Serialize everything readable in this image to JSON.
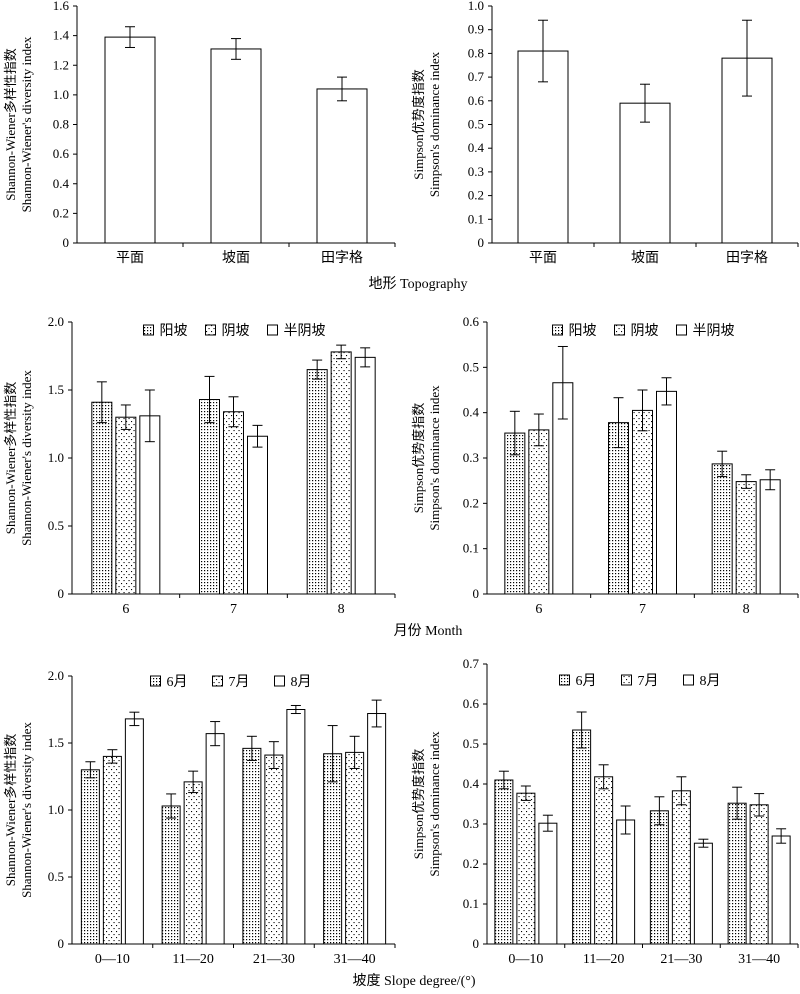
{
  "figure": {
    "row_xlabels": [
      "地形 Topography",
      "月份 Month",
      "坡度 Slope degree/(°)"
    ]
  },
  "chart_data": [
    {
      "id": "a",
      "type": "bar",
      "categories": [
        "平面",
        "坡面",
        "田字格"
      ],
      "series": [
        {
          "values": [
            1.39,
            1.31,
            1.04
          ],
          "errors": [
            0.07,
            0.07,
            0.08
          ],
          "pattern": "plain"
        }
      ],
      "ylim": [
        0,
        1.6
      ],
      "yticks": [
        0,
        0.2,
        0.4,
        0.6,
        0.8,
        1.0,
        1.2,
        1.4,
        1.6
      ],
      "ytick_labels": [
        "0",
        "0.2",
        "0.4",
        "0.6",
        "0.8",
        "1.0",
        "1.2",
        "1.4",
        "1.6"
      ],
      "ylabel": [
        "Shannon-Wiener多样性指数",
        "Shannon-Wiener's diversity index"
      ],
      "legend": null
    },
    {
      "id": "b",
      "type": "bar",
      "categories": [
        "平面",
        "坡面",
        "田字格"
      ],
      "series": [
        {
          "values": [
            0.81,
            0.59,
            0.78
          ],
          "errors": [
            0.13,
            0.08,
            0.16
          ],
          "pattern": "plain"
        }
      ],
      "ylim": [
        0,
        1.0
      ],
      "yticks": [
        0,
        0.1,
        0.2,
        0.3,
        0.4,
        0.5,
        0.6,
        0.7,
        0.8,
        0.9,
        1.0
      ],
      "ytick_labels": [
        "0",
        "0.1",
        "0.2",
        "0.3",
        "0.4",
        "0.5",
        "0.6",
        "0.7",
        "0.8",
        "0.9",
        "1.0"
      ],
      "ylabel": [
        "Simpson优势度指数",
        "Simpson's dominance index"
      ],
      "legend": null
    },
    {
      "id": "c",
      "type": "bar",
      "categories": [
        "6",
        "7",
        "8"
      ],
      "series": [
        {
          "name": "阳坡",
          "values": [
            1.41,
            1.43,
            1.65
          ],
          "errors": [
            0.15,
            0.17,
            0.07
          ],
          "pattern": "dense"
        },
        {
          "name": "阴坡",
          "values": [
            1.3,
            1.34,
            1.78
          ],
          "errors": [
            0.09,
            0.11,
            0.05
          ],
          "pattern": "sparse"
        },
        {
          "name": "半阴坡",
          "values": [
            1.31,
            1.16,
            1.74
          ],
          "errors": [
            0.19,
            0.08,
            0.07
          ],
          "pattern": "plain"
        }
      ],
      "ylim": [
        0,
        2.0
      ],
      "yticks": [
        0,
        0.5,
        1.0,
        1.5,
        2.0
      ],
      "ytick_labels": [
        "0",
        "0.5",
        "1.0",
        "1.5",
        "2.0"
      ],
      "ylabel": [
        "Shannon-Wiener多样性指数",
        "Shannon-Wiener's diversity index"
      ],
      "legend": "top"
    },
    {
      "id": "d",
      "type": "bar",
      "categories": [
        "6",
        "7",
        "8"
      ],
      "series": [
        {
          "name": "阳坡",
          "values": [
            0.355,
            0.378,
            0.287
          ],
          "errors": [
            0.048,
            0.055,
            0.028
          ],
          "pattern": "dense"
        },
        {
          "name": "阴坡",
          "values": [
            0.362,
            0.405,
            0.248
          ],
          "errors": [
            0.035,
            0.045,
            0.015
          ],
          "pattern": "sparse"
        },
        {
          "name": "半阴坡",
          "values": [
            0.466,
            0.447,
            0.252
          ],
          "errors": [
            0.08,
            0.03,
            0.022
          ],
          "pattern": "plain"
        }
      ],
      "ylim": [
        0,
        0.6
      ],
      "yticks": [
        0,
        0.1,
        0.2,
        0.3,
        0.4,
        0.5,
        0.6
      ],
      "ytick_labels": [
        "0",
        "0.1",
        "0.2",
        "0.3",
        "0.4",
        "0.5",
        "0.6"
      ],
      "ylabel": [
        "Simpson优势度指数",
        "Simpson's dominance index"
      ],
      "legend": "top"
    },
    {
      "id": "e",
      "type": "bar",
      "categories": [
        "0—10",
        "11—20",
        "21—30",
        "31—40"
      ],
      "series": [
        {
          "name": "6月",
          "values": [
            1.3,
            1.03,
            1.46,
            1.42
          ],
          "errors": [
            0.06,
            0.09,
            0.09,
            0.21
          ],
          "pattern": "dense"
        },
        {
          "name": "7月",
          "values": [
            1.4,
            1.21,
            1.41,
            1.43
          ],
          "errors": [
            0.05,
            0.08,
            0.1,
            0.12
          ],
          "pattern": "sparse"
        },
        {
          "name": "8月",
          "values": [
            1.68,
            1.57,
            1.75,
            1.72
          ],
          "errors": [
            0.05,
            0.09,
            0.03,
            0.1
          ],
          "pattern": "plain"
        }
      ],
      "ylim": [
        0,
        2.0
      ],
      "yticks": [
        0,
        0.5,
        1.0,
        1.5,
        2.0
      ],
      "ytick_labels": [
        "0",
        "0.5",
        "1.0",
        "1.5",
        "2.0"
      ],
      "ylabel": [
        "Shannon-Wiener多样性指数",
        "Shannon-Wiener's diversity index"
      ],
      "legend": "top"
    },
    {
      "id": "f",
      "type": "bar",
      "categories": [
        "0—10",
        "11—20",
        "21—30",
        "31—40"
      ],
      "series": [
        {
          "name": "6月",
          "values": [
            0.41,
            0.535,
            0.333,
            0.352
          ],
          "errors": [
            0.022,
            0.045,
            0.035,
            0.04
          ],
          "pattern": "dense"
        },
        {
          "name": "7月",
          "values": [
            0.377,
            0.418,
            0.383,
            0.348
          ],
          "errors": [
            0.018,
            0.03,
            0.035,
            0.028
          ],
          "pattern": "sparse"
        },
        {
          "name": "8月",
          "values": [
            0.302,
            0.31,
            0.252,
            0.27
          ],
          "errors": [
            0.02,
            0.035,
            0.01,
            0.018
          ],
          "pattern": "plain"
        }
      ],
      "ylim": [
        0,
        0.7
      ],
      "yticks": [
        0,
        0.1,
        0.2,
        0.3,
        0.4,
        0.5,
        0.6,
        0.7
      ],
      "ytick_labels": [
        "0",
        "0.1",
        "0.2",
        "0.3",
        "0.4",
        "0.5",
        "0.6",
        "0.7"
      ],
      "ylabel": [
        "Simpson优势度指数",
        "Simpson's dominance index"
      ],
      "legend": "top"
    }
  ]
}
